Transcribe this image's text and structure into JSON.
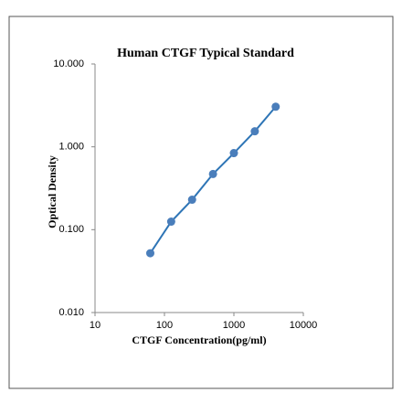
{
  "chart_data": {
    "type": "scatter-line",
    "title": "Human CTGF Typical Standard",
    "x_label": "CTGF Concentration(pg/ml)",
    "y_label": "Optical Density",
    "x": [
      62.5,
      125,
      250,
      500,
      1000,
      2000,
      4000
    ],
    "values": [
      0.052,
      0.125,
      0.23,
      0.47,
      0.84,
      1.54,
      3.05
    ],
    "color": "#2e75b6",
    "marker_color": "#4a7ebb",
    "x_log": true,
    "y_log": true,
    "xlim": [
      10,
      10000
    ],
    "ylim": [
      0.01,
      10
    ],
    "xticks": [
      10,
      100,
      1000,
      10000
    ],
    "yticks": [
      {
        "value": 0.01,
        "label": "0.010"
      },
      {
        "value": 0.1,
        "label": "0.100"
      },
      {
        "value": 1,
        "label": "1.000"
      },
      {
        "value": 10,
        "label": "10.000"
      }
    ]
  }
}
